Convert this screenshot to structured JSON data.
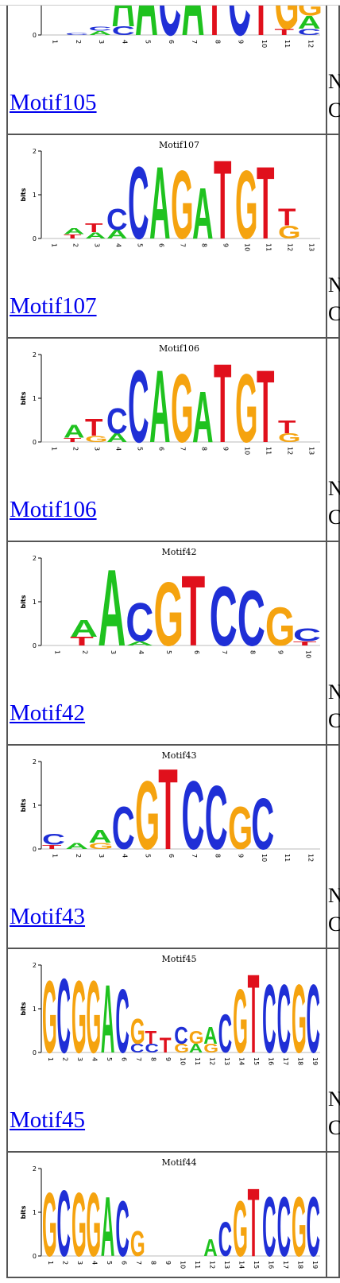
{
  "colors": {
    "A": "#1fc21f",
    "C": "#1f2fd6",
    "G": "#f5a30f",
    "T": "#e0101c",
    "link": "#0000ee"
  },
  "axis": {
    "label": "bits",
    "ticks": [
      "2",
      "1",
      "0"
    ]
  },
  "side_text": {
    "l1": "N",
    "l2": "C"
  },
  "motifs": [
    {
      "link": "Motif105",
      "title": "",
      "positions": 12,
      "cols": [
        [],
        [
          [
            "C",
            0.05
          ]
        ],
        [
          [
            "A",
            0.1
          ],
          [
            "C",
            0.1
          ]
        ],
        [
          [
            "A",
            1.7
          ],
          [
            "C",
            0.2
          ]
        ],
        [
          [
            "A",
            1.75
          ]
        ],
        [
          [
            "C",
            1.75
          ]
        ],
        [
          [
            "A",
            1.8
          ]
        ],
        [
          [
            "T",
            1.8
          ]
        ],
        [
          [
            "C",
            1.75
          ]
        ],
        [
          [
            "T",
            1.8
          ]
        ],
        [
          [
            "G",
            1.2
          ],
          [
            "T",
            0.15
          ]
        ],
        [
          [
            "G",
            0.4
          ],
          [
            "A",
            0.3
          ],
          [
            "C",
            0.15
          ]
        ]
      ]
    },
    {
      "link": "Motif107",
      "title": "Motif107",
      "positions": 13,
      "cols": [
        [],
        [
          [
            "A",
            0.15
          ],
          [
            "T",
            0.1
          ]
        ],
        [
          [
            "T",
            0.2
          ],
          [
            "A",
            0.15
          ]
        ],
        [
          [
            "C",
            0.5
          ],
          [
            "A",
            0.2
          ]
        ],
        [
          [
            "C",
            1.7
          ]
        ],
        [
          [
            "A",
            1.7
          ]
        ],
        [
          [
            "G",
            1.6
          ]
        ],
        [
          [
            "A",
            1.2
          ]
        ],
        [
          [
            "T",
            1.85
          ]
        ],
        [
          [
            "G",
            1.6
          ]
        ],
        [
          [
            "T",
            1.7
          ]
        ],
        [
          [
            "T",
            0.4
          ],
          [
            "G",
            0.3
          ]
        ],
        []
      ]
    },
    {
      "link": "Motif106",
      "title": "Motif106",
      "positions": 13,
      "cols": [
        [],
        [
          [
            "A",
            0.3
          ],
          [
            "T",
            0.1
          ]
        ],
        [
          [
            "T",
            0.4
          ],
          [
            "G",
            0.15
          ]
        ],
        [
          [
            "C",
            0.6
          ],
          [
            "A",
            0.2
          ]
        ],
        [
          [
            "C",
            1.7
          ]
        ],
        [
          [
            "A",
            1.7
          ]
        ],
        [
          [
            "G",
            1.6
          ]
        ],
        [
          [
            "A",
            1.2
          ]
        ],
        [
          [
            "T",
            1.85
          ]
        ],
        [
          [
            "G",
            1.6
          ]
        ],
        [
          [
            "T",
            1.7
          ]
        ],
        [
          [
            "T",
            0.3
          ],
          [
            "G",
            0.2
          ]
        ],
        []
      ]
    },
    {
      "link": "Motif42",
      "title": "Motif42",
      "positions": 10,
      "cols": [
        [],
        [
          [
            "A",
            0.4
          ],
          [
            "T",
            0.2
          ]
        ],
        [
          [
            "A",
            1.8
          ]
        ],
        [
          [
            "C",
            0.9
          ],
          [
            "A",
            0.1
          ]
        ],
        [
          [
            "G",
            1.5
          ]
        ],
        [
          [
            "T",
            1.65
          ]
        ],
        [
          [
            "C",
            1.4
          ]
        ],
        [
          [
            "C",
            1.3
          ]
        ],
        [
          [
            "G",
            0.9
          ]
        ],
        [
          [
            "C",
            0.3
          ],
          [
            "T",
            0.1
          ]
        ]
      ]
    },
    {
      "link": "Motif43",
      "title": "Motif43",
      "positions": 12,
      "cols": [
        [
          [
            "C",
            0.25
          ],
          [
            "T",
            0.1
          ]
        ],
        [
          [
            "A",
            0.15
          ]
        ],
        [
          [
            "A",
            0.3
          ],
          [
            "G",
            0.15
          ]
        ],
        [
          [
            "C",
            1.0
          ]
        ],
        [
          [
            "G",
            1.6
          ]
        ],
        [
          [
            "T",
            1.9
          ]
        ],
        [
          [
            "C",
            1.6
          ]
        ],
        [
          [
            "C",
            1.5
          ]
        ],
        [
          [
            "G",
            1.0
          ]
        ],
        [
          [
            "C",
            1.2
          ]
        ],
        [],
        []
      ]
    },
    {
      "link": "Motif45",
      "title": "Motif45",
      "positions": 19,
      "cols": [
        [
          [
            "G",
            1.7
          ]
        ],
        [
          [
            "C",
            1.75
          ]
        ],
        [
          [
            "G",
            1.7
          ]
        ],
        [
          [
            "G",
            1.7
          ]
        ],
        [
          [
            "A",
            1.6
          ]
        ],
        [
          [
            "C",
            1.5
          ]
        ],
        [
          [
            "G",
            0.6
          ],
          [
            "C",
            0.2
          ]
        ],
        [
          [
            "T",
            0.3
          ],
          [
            "C",
            0.2
          ]
        ],
        [
          [
            "T",
            0.35
          ]
        ],
        [
          [
            "C",
            0.4
          ],
          [
            "G",
            0.2
          ]
        ],
        [
          [
            "G",
            0.3
          ],
          [
            "A",
            0.2
          ]
        ],
        [
          [
            "A",
            0.4
          ],
          [
            "G",
            0.2
          ]
        ],
        [
          [
            "C",
            0.9
          ]
        ],
        [
          [
            "G",
            1.5
          ]
        ],
        [
          [
            "T",
            1.85
          ]
        ],
        [
          [
            "C",
            1.6
          ]
        ],
        [
          [
            "C",
            1.6
          ]
        ],
        [
          [
            "G",
            1.6
          ]
        ],
        [
          [
            "C",
            1.6
          ]
        ]
      ]
    },
    {
      "link": "",
      "title": "Motif44",
      "positions": 19,
      "cols": [
        [
          [
            "G",
            1.5
          ]
        ],
        [
          [
            "C",
            1.55
          ]
        ],
        [
          [
            "G",
            1.5
          ]
        ],
        [
          [
            "G",
            1.5
          ]
        ],
        [
          [
            "A",
            1.4
          ]
        ],
        [
          [
            "C",
            1.3
          ]
        ],
        [
          [
            "G",
            0.6
          ]
        ],
        [],
        [],
        [],
        [],
        [
          [
            "A",
            0.4
          ]
        ],
        [
          [
            "C",
            0.8
          ]
        ],
        [
          [
            "G",
            1.3
          ]
        ],
        [
          [
            "T",
            1.6
          ]
        ],
        [
          [
            "C",
            1.4
          ]
        ],
        [
          [
            "C",
            1.4
          ]
        ],
        [
          [
            "G",
            1.4
          ]
        ],
        [
          [
            "C",
            1.4
          ]
        ]
      ]
    }
  ]
}
